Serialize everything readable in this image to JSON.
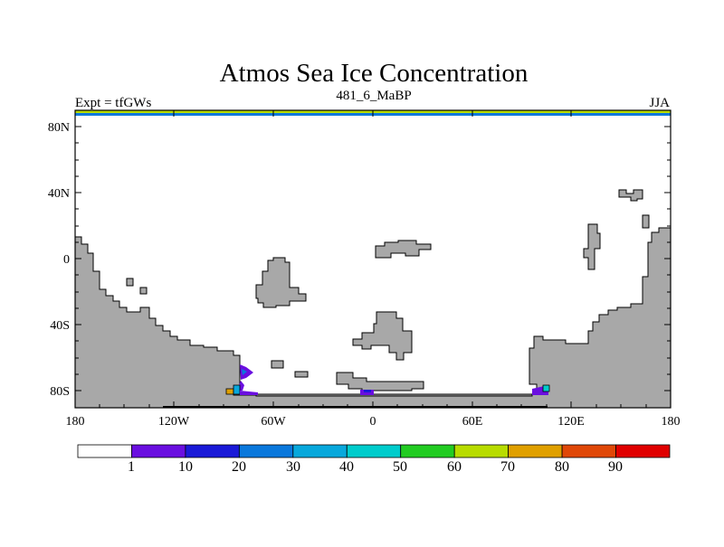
{
  "title": "Atmos Sea Ice Concentration",
  "subtitle_left": "Expt = tfGWs",
  "subtitle_center": "481_6_MaBP",
  "subtitle_right": "JJA",
  "lat_labels": [
    "80N",
    "40N",
    "0",
    "40S",
    "80S"
  ],
  "lon_labels": [
    "180",
    "120W",
    "60W",
    "0",
    "60E",
    "120E",
    "180"
  ],
  "colorbar": {
    "colors": [
      "#ffffff",
      "#6a0fe0",
      "#1a1ad8",
      "#0a78dc",
      "#08a8dc",
      "#00cccc",
      "#22cc22",
      "#b8dc00",
      "#e0a000",
      "#e04808",
      "#e00000"
    ],
    "labels": [
      "1",
      "10",
      "20",
      "30",
      "40",
      "50",
      "60",
      "70",
      "80",
      "90"
    ]
  },
  "land_color": "#a8a8a8"
}
